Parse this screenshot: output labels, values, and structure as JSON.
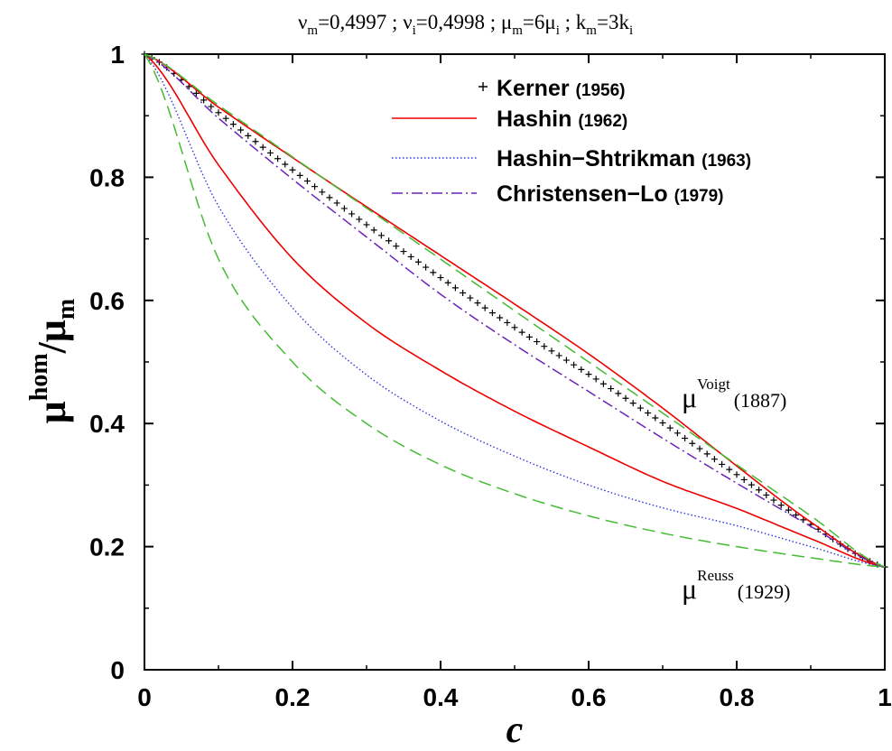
{
  "chart_data": {
    "type": "line",
    "title": {
      "nu_m_symbol": "ν",
      "nu_m_sub": "m",
      "nu_m_val": "=0,4997 ; ",
      "nu_i_symbol": "ν",
      "nu_i_sub": "i",
      "nu_i_val": "=0,4998 ; ",
      "mu_m_symbol": "μ",
      "mu_m_sub": "m",
      "mu_m_val": "=6μ",
      "mu_i_sub": "i",
      "sep": " ; ",
      "k_m_symbol": "k",
      "k_m_sub": "m",
      "k_m_val": "=3k",
      "k_i_sub": "i"
    },
    "xlabel": "c",
    "ylabel": {
      "mu": "μ",
      "sup": "hom",
      "slash": "/",
      "mu2": "μ",
      "sub": "m"
    },
    "xlim": [
      0,
      1
    ],
    "ylim": [
      0,
      1
    ],
    "xticks": [
      0,
      0.2,
      0.4,
      0.6,
      0.8,
      1
    ],
    "yticks": [
      0,
      0.2,
      0.4,
      0.6,
      0.8,
      1
    ],
    "xtick_labels": [
      "0",
      "0.2",
      "0.4",
      "0.6",
      "0.8",
      "1"
    ],
    "ytick_labels": [
      "0",
      "0.2",
      "0.4",
      "0.6",
      "0.8",
      "1"
    ],
    "grid": false,
    "legend_position": "top-right",
    "x": [
      0,
      0.1,
      0.2,
      0.3,
      0.4,
      0.5,
      0.6,
      0.7,
      0.8,
      0.9,
      1.0
    ],
    "series": [
      {
        "name": "Kerner",
        "year": "(1956)",
        "style": "plus",
        "color": "#000000",
        "values": [
          1.0,
          0.905,
          0.812,
          0.723,
          0.637,
          0.556,
          0.48,
          0.401,
          0.317,
          0.236,
          0.167
        ]
      },
      {
        "name": "Hashin",
        "year": "(1962)",
        "style": "solid",
        "color": "#ee0000",
        "values": [
          1.0,
          0.914,
          0.832,
          0.752,
          0.673,
          0.594,
          0.513,
          0.425,
          0.331,
          0.24,
          0.167
        ]
      },
      {
        "name": "",
        "year": "",
        "style": "solid",
        "color": "#ee0000",
        "values": [
          1.0,
          0.82,
          0.668,
          0.563,
          0.486,
          0.42,
          0.362,
          0.306,
          0.262,
          0.213,
          0.167
        ]
      },
      {
        "name": "Hashin−Shtrikman",
        "year": "(1963)",
        "style": "dotted",
        "color": "#2a36d8",
        "values": [
          1.0,
          0.753,
          0.588,
          0.479,
          0.404,
          0.347,
          0.3,
          0.263,
          0.234,
          0.2,
          0.167
        ]
      },
      {
        "name": "Christensen−Lo",
        "year": "(1979)",
        "style": "dashdot",
        "color": "#6a22b8",
        "values": [
          1.0,
          0.896,
          0.797,
          0.703,
          0.61,
          0.528,
          0.452,
          0.376,
          0.303,
          0.233,
          0.167
        ]
      },
      {
        "name": "",
        "year": "",
        "style": "dashed",
        "color": "#44bb33",
        "values": [
          1.0,
          0.917,
          0.833,
          0.75,
          0.667,
          0.583,
          0.5,
          0.417,
          0.333,
          0.25,
          0.167
        ]
      },
      {
        "name": "",
        "year": "",
        "style": "dashed",
        "color": "#44bb33",
        "values": [
          1.0,
          0.667,
          0.5,
          0.4,
          0.333,
          0.286,
          0.25,
          0.222,
          0.2,
          0.182,
          0.167
        ]
      }
    ],
    "annotations": [
      {
        "mu": "μ",
        "sup": "Voigt",
        "year": "(1887)"
      },
      {
        "mu": "μ",
        "sup": "Reuss",
        "year": "(1929)"
      }
    ]
  }
}
